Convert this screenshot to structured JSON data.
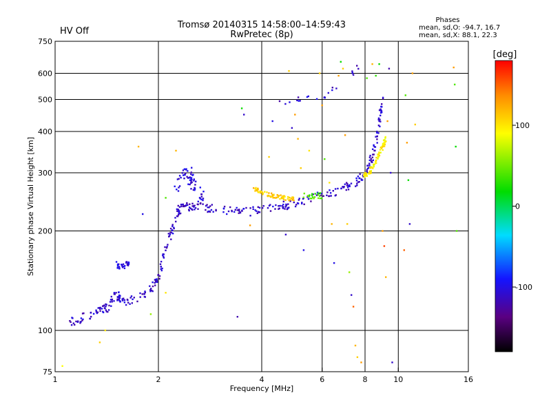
{
  "header": {
    "title_line1": "Tromsø 20140315 14:58:00–14:59:43",
    "title_line2": "RwPretec (8p)",
    "status": "HV Off",
    "status_color": "#cc0000"
  },
  "phases": {
    "heading": "Phases",
    "line_o": "mean, sd,O: -94.7, 16.7",
    "line_x": "mean, sd,X:  88.1, 22.3"
  },
  "colorbar": {
    "unit": "[deg]",
    "range": [
      -180,
      180
    ],
    "ticks": [
      {
        "value": 100,
        "label": "100"
      },
      {
        "value": 0,
        "label": "0"
      },
      {
        "value": -100,
        "label": "-100"
      }
    ]
  },
  "chart_data": {
    "type": "scatter",
    "xlabel": "Frequency [MHz]",
    "ylabel": "Stationary phase Virtual Height [km]",
    "x_scale": "log",
    "y_scale": "log",
    "xlim": [
      1,
      16
    ],
    "ylim": [
      75,
      750
    ],
    "x_ticks": [
      {
        "value": 1,
        "label": "1"
      },
      {
        "value": 2,
        "label": "2"
      },
      {
        "value": 4,
        "label": "4"
      },
      {
        "value": 6,
        "label": "6"
      },
      {
        "value": 8,
        "label": "8"
      },
      {
        "value": 10,
        "label": "10"
      },
      {
        "value": 16,
        "label": "16"
      }
    ],
    "y_ticks": [
      {
        "value": 75,
        "label": "75"
      },
      {
        "value": 100,
        "label": "100"
      },
      {
        "value": 200,
        "label": "200"
      },
      {
        "value": 300,
        "label": "300"
      },
      {
        "value": 400,
        "label": "400"
      },
      {
        "value": 500,
        "label": "500"
      },
      {
        "value": 600,
        "label": "600"
      },
      {
        "value": 750,
        "label": "750"
      }
    ],
    "grid_x": [
      2,
      4,
      6,
      8,
      10
    ],
    "grid_y": [
      100,
      200,
      300,
      400,
      500,
      600
    ],
    "traces": [
      {
        "points": [
          [
            1.1,
            107
          ],
          [
            1.15,
            106
          ],
          [
            1.2,
            110
          ],
          [
            1.3,
            113
          ],
          [
            1.35,
            118
          ],
          [
            1.4,
            115
          ],
          [
            1.45,
            121
          ],
          [
            1.5,
            130
          ],
          [
            1.55,
            125
          ],
          [
            1.6,
            120
          ],
          [
            1.7,
            124
          ],
          [
            1.8,
            127
          ],
          [
            1.9,
            133
          ],
          [
            2.0,
            145
          ],
          [
            2.05,
            160
          ],
          [
            2.1,
            175
          ],
          [
            2.15,
            190
          ],
          [
            2.2,
            205
          ],
          [
            2.25,
            220
          ],
          [
            2.3,
            232
          ],
          [
            2.4,
            236
          ],
          [
            2.5,
            238
          ],
          [
            2.6,
            240
          ],
          [
            2.7,
            236
          ],
          [
            2.9,
            234
          ],
          [
            3.1,
            231
          ],
          [
            3.4,
            229
          ],
          [
            3.7,
            229
          ],
          [
            4.0,
            232
          ],
          [
            4.4,
            236
          ],
          [
            4.8,
            240
          ],
          [
            5.2,
            246
          ],
          [
            5.6,
            252
          ],
          [
            6.0,
            257
          ],
          [
            6.5,
            262
          ],
          [
            7.0,
            270
          ],
          [
            7.5,
            280
          ],
          [
            7.8,
            290
          ],
          [
            8.0,
            300
          ],
          [
            8.2,
            315
          ],
          [
            8.4,
            335
          ],
          [
            8.6,
            370
          ],
          [
            8.8,
            420
          ],
          [
            8.9,
            470
          ],
          [
            9.0,
            510
          ]
        ],
        "phase": -110,
        "spread": 0.03,
        "count": 420
      },
      {
        "points": [
          [
            2.25,
            270
          ],
          [
            2.35,
            290
          ],
          [
            2.45,
            305
          ],
          [
            2.5,
            280
          ],
          [
            2.6,
            265
          ],
          [
            2.7,
            255
          ]
        ],
        "phase": -105,
        "spread": 0.05,
        "count": 60
      },
      {
        "points": [
          [
            1.5,
            160
          ],
          [
            1.55,
            155
          ],
          [
            1.6,
            158
          ],
          [
            1.65,
            163
          ]
        ],
        "phase": -100,
        "spread": 0.02,
        "count": 30
      },
      {
        "points": [
          [
            3.8,
            268
          ],
          [
            4.0,
            262
          ],
          [
            4.3,
            256
          ],
          [
            4.6,
            252
          ],
          [
            5.0,
            250
          ]
        ],
        "phase": 110,
        "spread": 0.015,
        "count": 70
      },
      {
        "points": [
          [
            7.9,
            290
          ],
          [
            8.2,
            300
          ],
          [
            8.5,
            315
          ],
          [
            8.8,
            340
          ],
          [
            9.0,
            360
          ],
          [
            9.2,
            380
          ]
        ],
        "phase": 95,
        "spread": 0.02,
        "count": 80
      },
      {
        "points": [
          [
            5.3,
            255
          ],
          [
            5.6,
            254
          ],
          [
            6.0,
            256
          ]
        ],
        "phase": 40,
        "spread": 0.02,
        "count": 20
      },
      {
        "points": [
          [
            4.5,
            480
          ],
          [
            5.0,
            490
          ],
          [
            5.3,
            500
          ],
          [
            6.3,
            520
          ],
          [
            7.2,
            590
          ],
          [
            7.7,
            620
          ]
        ],
        "phase": -110,
        "spread": 0.03,
        "count": 22
      }
    ],
    "scatter_points": [
      [
        1.05,
        78,
        90
      ],
      [
        1.35,
        92,
        110
      ],
      [
        1.4,
        100,
        100
      ],
      [
        1.75,
        360,
        120
      ],
      [
        1.8,
        225,
        -100
      ],
      [
        1.9,
        112,
        60
      ],
      [
        2.1,
        252,
        40
      ],
      [
        2.25,
        350,
        120
      ],
      [
        2.1,
        130,
        100
      ],
      [
        3.4,
        110,
        -120
      ],
      [
        3.5,
        470,
        20
      ],
      [
        3.55,
        450,
        -110
      ],
      [
        3.7,
        208,
        130
      ],
      [
        4.2,
        335,
        110
      ],
      [
        4.3,
        430,
        -100
      ],
      [
        4.7,
        195,
        -110
      ],
      [
        4.8,
        610,
        110
      ],
      [
        4.9,
        410,
        -110
      ],
      [
        5.0,
        450,
        130
      ],
      [
        5.1,
        380,
        120
      ],
      [
        5.2,
        310,
        110
      ],
      [
        5.3,
        175,
        -100
      ],
      [
        5.5,
        350,
        100
      ],
      [
        5.9,
        600,
        110
      ],
      [
        6.0,
        480,
        130
      ],
      [
        6.1,
        330,
        40
      ],
      [
        6.3,
        280,
        100
      ],
      [
        6.4,
        210,
        120
      ],
      [
        6.5,
        160,
        -100
      ],
      [
        6.6,
        540,
        -110
      ],
      [
        6.7,
        590,
        130
      ],
      [
        6.8,
        650,
        20
      ],
      [
        6.9,
        620,
        110
      ],
      [
        7.0,
        390,
        130
      ],
      [
        7.1,
        210,
        110
      ],
      [
        7.2,
        150,
        60
      ],
      [
        7.3,
        128,
        -110
      ],
      [
        7.4,
        118,
        150
      ],
      [
        7.5,
        90,
        120
      ],
      [
        7.6,
        83,
        110
      ],
      [
        7.8,
        80,
        130
      ],
      [
        8.1,
        580,
        40
      ],
      [
        8.4,
        640,
        120
      ],
      [
        8.6,
        590,
        30
      ],
      [
        8.8,
        640,
        20
      ],
      [
        9.0,
        200,
        130
      ],
      [
        9.1,
        180,
        160
      ],
      [
        9.2,
        145,
        120
      ],
      [
        9.3,
        430,
        130
      ],
      [
        9.5,
        300,
        -110
      ],
      [
        9.6,
        80,
        -110
      ],
      [
        10.5,
        515,
        40
      ],
      [
        10.6,
        370,
        130
      ],
      [
        10.7,
        285,
        20
      ],
      [
        10.8,
        210,
        -110
      ],
      [
        11.0,
        600,
        130
      ],
      [
        11.2,
        420,
        110
      ],
      [
        14.5,
        625,
        130
      ],
      [
        14.6,
        555,
        40
      ],
      [
        14.7,
        360,
        20
      ],
      [
        14.8,
        200,
        40
      ],
      [
        10.4,
        175,
        150
      ],
      [
        9.4,
        620,
        -120
      ]
    ]
  }
}
